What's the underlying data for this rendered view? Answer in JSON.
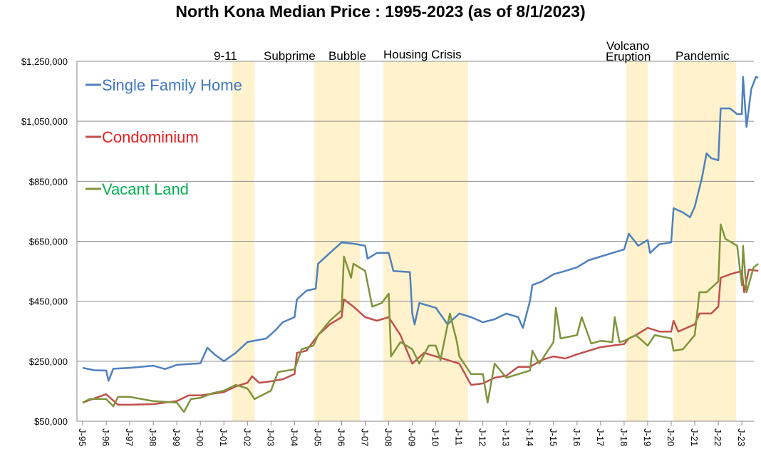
{
  "chart_data": {
    "type": "line",
    "title": "North Kona Median Price : 1995-2023   (as of 8/1/2023)",
    "xlabel": "",
    "ylabel": "",
    "ylim": [
      50000,
      1250000
    ],
    "xlim": [
      1995,
      2023.7
    ],
    "grid": true,
    "legend_placement": "top-left",
    "y_ticks": [
      50000,
      250000,
      450000,
      650000,
      850000,
      1050000,
      1250000
    ],
    "y_tick_labels": [
      "$50,000",
      "$250,000",
      "$450,000",
      "$650,000",
      "$850,000",
      "$1,050,000",
      "$1,250,000"
    ],
    "x_tick_labels": [
      "J-95",
      "J-96",
      "J-97",
      "J-98",
      "J-99",
      "J-00",
      "J-01",
      "J-02",
      "J-03",
      "J-04",
      "J-05",
      "J-06",
      "J-07",
      "J-08",
      "J-09",
      "J-10",
      "J-11",
      "J-12",
      "J-13",
      "J-14",
      "J-15",
      "J-16",
      "J-17",
      "J-18",
      "J-19",
      "J-20",
      "J-21",
      "J-22",
      "J-23"
    ],
    "annotations": [
      {
        "label": "9-11",
        "start": 2001.36,
        "end": 2002.3
      },
      {
        "label": "Subprime",
        "label2": "Bubble",
        "start": 2004.84,
        "end": 2006.77
      },
      {
        "label": "Housing Crisis",
        "start": 2007.77,
        "end": 2011.37
      },
      {
        "label": "Volcano",
        "label2": "Eruption",
        "start": 2018.1,
        "end": 2019.0
      },
      {
        "label": "Pandemic",
        "start": 2020.1,
        "end": 2022.75
      }
    ],
    "band_color": "#fff2cc",
    "series": [
      {
        "name": "Single Family Home",
        "color": "#4f81bd",
        "label_color": "#3f78c5",
        "x": [
          1995,
          1995.5,
          1996,
          1996.1,
          1996.3,
          1997,
          1998,
          1998.5,
          1999,
          2000,
          2000.3,
          2000.6,
          2001,
          2001.5,
          2002,
          2002.8,
          2003.2,
          2003.5,
          2004,
          2004.1,
          2004.5,
          2004.9,
          2005,
          2005.5,
          2006,
          2006.5,
          2007,
          2007.1,
          2007.5,
          2008,
          2008.2,
          2008.9,
          2009,
          2009.1,
          2009.3,
          2010,
          2010.5,
          2011,
          2011.5,
          2012,
          2012.5,
          2013,
          2013.5,
          2013.7,
          2014,
          2014.1,
          2014.5,
          2015,
          2015.5,
          2016,
          2016.5,
          2017,
          2017.5,
          2018,
          2018.2,
          2018.6,
          2019,
          2019.1,
          2019.5,
          2020,
          2020.1,
          2020.5,
          2020.8,
          2021,
          2021.3,
          2021.5,
          2021.7,
          2022,
          2022.1,
          2022.5,
          2022.8,
          2023,
          2023.05,
          2023.2,
          2023.4,
          2023.6,
          2023.7
        ],
        "values": [
          228000,
          220000,
          219000,
          185000,
          225000,
          228000,
          235000,
          224000,
          238000,
          243000,
          295000,
          273000,
          250000,
          278000,
          314000,
          326000,
          354000,
          380000,
          397000,
          456000,
          485000,
          492000,
          575000,
          611000,
          646000,
          642000,
          635000,
          592000,
          611000,
          611000,
          551000,
          547000,
          409000,
          373000,
          444000,
          428000,
          373000,
          409000,
          397000,
          380000,
          390000,
          409000,
          397000,
          361000,
          451000,
          504000,
          516000,
          540000,
          551000,
          563000,
          587000,
          599000,
          611000,
          623000,
          675000,
          635000,
          654000,
          611000,
          640000,
          646000,
          760000,
          746000,
          730000,
          765000,
          860000,
          943000,
          927000,
          920000,
          1093000,
          1093000,
          1074000,
          1074000,
          1198000,
          1031000,
          1157000,
          1198000,
          1195000
        ]
      },
      {
        "name": "Condominium",
        "color": "#c0504d",
        "label_color": "#e81e1e",
        "x": [
          1995,
          1996,
          1996.5,
          1997,
          1998,
          1999,
          1999.5,
          2000,
          2001,
          2001.5,
          2002,
          2002.2,
          2002.5,
          2003,
          2003.5,
          2004,
          2004.1,
          2004.5,
          2005,
          2005.5,
          2006,
          2006.1,
          2006.5,
          2007,
          2007.5,
          2008,
          2008.5,
          2009,
          2009.5,
          2010,
          2010.5,
          2011,
          2011.5,
          2012,
          2012.5,
          2013,
          2013.5,
          2014,
          2014.5,
          2015,
          2015.5,
          2016,
          2016.5,
          2017,
          2017.5,
          2018,
          2018.2,
          2018.5,
          2019,
          2019.5,
          2020,
          2020.1,
          2020.3,
          2021,
          2021.2,
          2021.7,
          2022,
          2022.1,
          2022.5,
          2023,
          2023.1,
          2023.3,
          2023.7
        ],
        "values": [
          112000,
          140000,
          105000,
          105000,
          107000,
          117000,
          136000,
          136000,
          147000,
          166000,
          178000,
          200000,
          178000,
          183000,
          190000,
          207000,
          278000,
          285000,
          337000,
          373000,
          397000,
          456000,
          432000,
          397000,
          385000,
          397000,
          337000,
          242000,
          278000,
          266000,
          254000,
          242000,
          171000,
          176000,
          195000,
          202000,
          231000,
          231000,
          254000,
          266000,
          259000,
          273000,
          285000,
          297000,
          302000,
          307000,
          326000,
          337000,
          361000,
          349000,
          349000,
          385000,
          349000,
          373000,
          409000,
          409000,
          432000,
          528000,
          540000,
          551000,
          480000,
          556000,
          551000
        ]
      },
      {
        "name": "Vacant Land",
        "color": "#7f943c",
        "label_color": "#00b050",
        "x": [
          1995,
          1995.3,
          1996,
          1996.3,
          1996.5,
          1997,
          1998,
          1999,
          1999.3,
          1999.6,
          2000,
          2000.5,
          2001,
          2001.5,
          2002,
          2002.3,
          2003,
          2003.3,
          2004,
          2004.3,
          2004.8,
          2005,
          2005.5,
          2006,
          2006.1,
          2006.4,
          2006.5,
          2007,
          2007.3,
          2007.7,
          2008,
          2008.1,
          2008.5,
          2009,
          2009.3,
          2009.7,
          2010,
          2010.2,
          2010.6,
          2010.9,
          2011,
          2011.5,
          2012,
          2012.2,
          2012.5,
          2013,
          2013.5,
          2014,
          2014.1,
          2014.4,
          2014.8,
          2015,
          2015.1,
          2015.3,
          2016,
          2016.2,
          2016.6,
          2017,
          2017.5,
          2017.6,
          2017.8,
          2018,
          2018.5,
          2019,
          2019.3,
          2020,
          2020.1,
          2020.5,
          2021,
          2021.2,
          2021.5,
          2022,
          2022.1,
          2022.3,
          2022.8,
          2023,
          2023.05,
          2023.2,
          2023.5,
          2023.7
        ],
        "values": [
          112000,
          124000,
          124000,
          100000,
          131000,
          131000,
          117000,
          112000,
          81000,
          124000,
          128000,
          143000,
          152000,
          171000,
          159000,
          124000,
          152000,
          214000,
          223000,
          290000,
          302000,
          337000,
          385000,
          420000,
          599000,
          528000,
          575000,
          551000,
          432000,
          444000,
          475000,
          266000,
          314000,
          290000,
          242000,
          302000,
          302000,
          254000,
          409000,
          314000,
          266000,
          207000,
          207000,
          112000,
          242000,
          195000,
          207000,
          219000,
          285000,
          242000,
          290000,
          314000,
          428000,
          326000,
          337000,
          397000,
          309000,
          318000,
          314000,
          397000,
          314000,
          318000,
          337000,
          302000,
          337000,
          326000,
          285000,
          290000,
          337000,
          480000,
          480000,
          516000,
          706000,
          658000,
          635000,
          504000,
          635000,
          480000,
          563000,
          575000
        ]
      }
    ]
  }
}
